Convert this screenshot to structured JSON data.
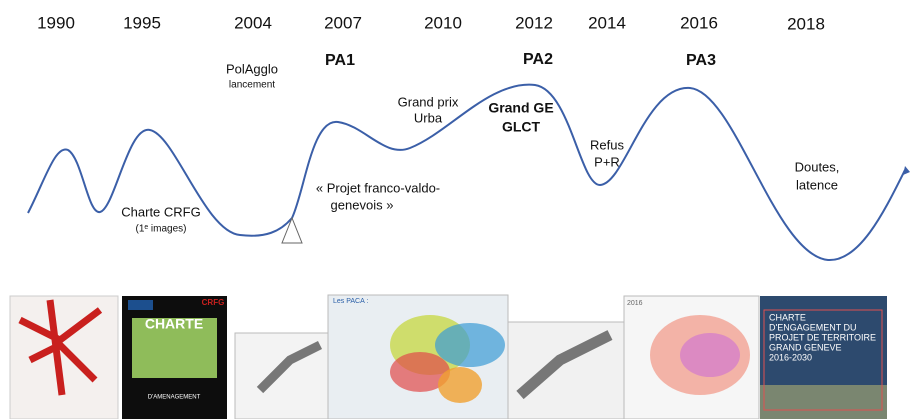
{
  "years": [
    "1990",
    "1995",
    "2004",
    "2007",
    "2010",
    "2012",
    "2014",
    "2016",
    "2018"
  ],
  "events": {
    "polagglo": [
      "PolAgglo",
      "lancement"
    ],
    "pa1": "PA1",
    "pa2": "PA2",
    "pa3": "PA3",
    "grand_prix": [
      "Grand prix",
      "Urba"
    ],
    "grand_ge": [
      "Grand GE",
      "GLCT"
    ],
    "refus": [
      "Refus",
      "P+R"
    ],
    "doutes": [
      "Doutes,",
      "latence"
    ],
    "charte": [
      "Charte CRFG",
      "(1ᵉ images)"
    ],
    "projet": [
      "« Projet franco-valdo-",
      "genevois »"
    ]
  },
  "thumbnails": {
    "charte_cover": [
      "CRFG",
      "CHARTE",
      "D'AMENAGEMENT"
    ],
    "paca_title": "Les PACA :",
    "map_2016": "2016",
    "charte_2016": [
      "CHARTE",
      "D'ENGAGEMENT DU",
      "PROJET DE TERRITOIRE",
      "GRAND GENEVE",
      "2016-2030"
    ]
  }
}
